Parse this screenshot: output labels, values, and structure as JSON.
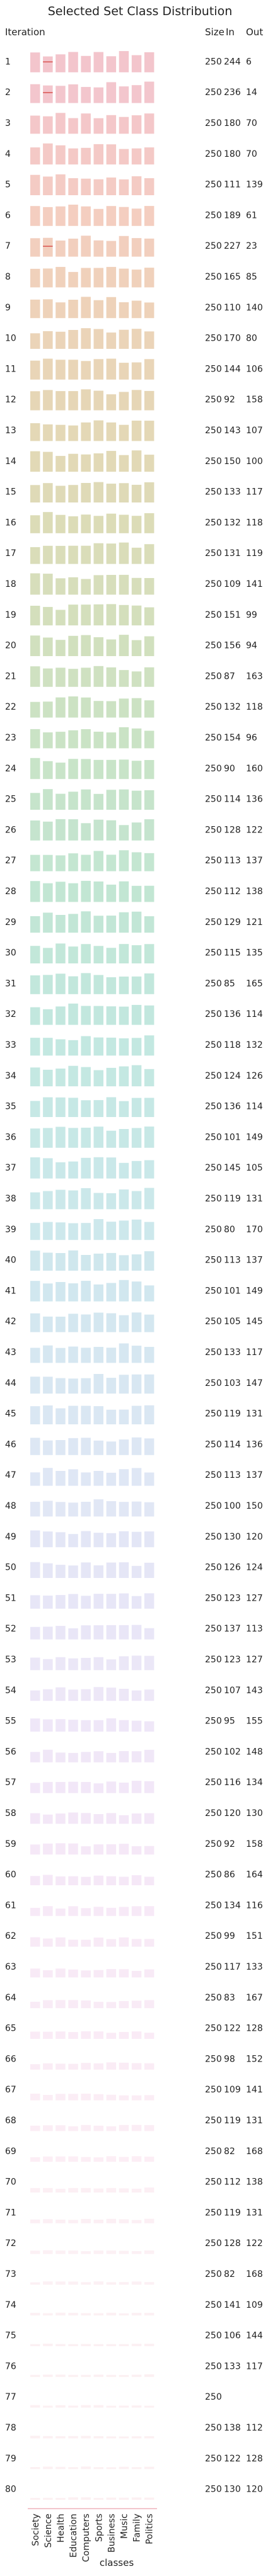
{
  "chart_data": {
    "type": "bar",
    "title": "Selected Set Class Distribution",
    "row_header": "Iteration",
    "column_headers": {
      "size": "Size",
      "in": "In",
      "out": "Out"
    },
    "xlabel": "classes",
    "categories": [
      "Society",
      "Science",
      "Health",
      "Education",
      "Computers",
      "Sports",
      "Business",
      "Music",
      "Family",
      "Politics"
    ],
    "grid": false,
    "legend": "none",
    "note": "",
    "rows": [
      {
        "iteration": "1",
        "size": "250",
        "in": "244",
        "out": "6",
        "color": "#f3c5cc"
      },
      {
        "iteration": "2",
        "size": "250",
        "in": "236",
        "out": "14",
        "color": "#f3c5cc"
      },
      {
        "iteration": "3",
        "size": "250",
        "in": "180",
        "out": "70",
        "color": "#f4c6c8"
      },
      {
        "iteration": "4",
        "size": "250",
        "in": "180",
        "out": "70",
        "color": "#f4c7c4"
      },
      {
        "iteration": "5",
        "size": "250",
        "in": "111",
        "out": "139",
        "color": "#f4c9c1"
      },
      {
        "iteration": "6",
        "size": "250",
        "in": "189",
        "out": "61",
        "color": "#f3cbbd"
      },
      {
        "iteration": "7",
        "size": "250",
        "in": "227",
        "out": "23",
        "color": "#f1ccba"
      },
      {
        "iteration": "8",
        "size": "250",
        "in": "165",
        "out": "85",
        "color": "#efcdb6"
      },
      {
        "iteration": "9",
        "size": "250",
        "in": "110",
        "out": "140",
        "color": "#ecceb3"
      },
      {
        "iteration": "10",
        "size": "250",
        "in": "170",
        "out": "80",
        "color": "#e9cfb1"
      },
      {
        "iteration": "11",
        "size": "250",
        "in": "144",
        "out": "106",
        "color": "#e6d0ae"
      },
      {
        "iteration": "12",
        "size": "250",
        "in": "92",
        "out": "158",
        "color": "#e3d1ac"
      },
      {
        "iteration": "13",
        "size": "250",
        "in": "143",
        "out": "107",
        "color": "#e0d2ab"
      },
      {
        "iteration": "14",
        "size": "250",
        "in": "150",
        "out": "100",
        "color": "#ddd3aa"
      },
      {
        "iteration": "15",
        "size": "250",
        "in": "133",
        "out": "117",
        "color": "#d9d4aa"
      },
      {
        "iteration": "16",
        "size": "250",
        "in": "132",
        "out": "118",
        "color": "#d6d5aa"
      },
      {
        "iteration": "17",
        "size": "250",
        "in": "131",
        "out": "119",
        "color": "#d2d6ab"
      },
      {
        "iteration": "18",
        "size": "250",
        "in": "109",
        "out": "141",
        "color": "#ced7ac"
      },
      {
        "iteration": "19",
        "size": "250",
        "in": "151",
        "out": "99",
        "color": "#cad8ad"
      },
      {
        "iteration": "20",
        "size": "250",
        "in": "156",
        "out": "94",
        "color": "#c6d8ae"
      },
      {
        "iteration": "21",
        "size": "250",
        "in": "87",
        "out": "163",
        "color": "#c2d9b0"
      },
      {
        "iteration": "22",
        "size": "250",
        "in": "132",
        "out": "118",
        "color": "#bedab2"
      },
      {
        "iteration": "23",
        "size": "250",
        "in": "154",
        "out": "96",
        "color": "#badab4"
      },
      {
        "iteration": "24",
        "size": "250",
        "in": "90",
        "out": "160",
        "color": "#b6dbb6"
      },
      {
        "iteration": "25",
        "size": "250",
        "in": "114",
        "out": "136",
        "color": "#b3dbb9"
      },
      {
        "iteration": "26",
        "size": "250",
        "in": "128",
        "out": "122",
        "color": "#b0dbbc"
      },
      {
        "iteration": "27",
        "size": "250",
        "in": "113",
        "out": "137",
        "color": "#addcbf"
      },
      {
        "iteration": "28",
        "size": "250",
        "in": "112",
        "out": "138",
        "color": "#aadcc2"
      },
      {
        "iteration": "29",
        "size": "250",
        "in": "129",
        "out": "121",
        "color": "#a8dcc5"
      },
      {
        "iteration": "30",
        "size": "250",
        "in": "115",
        "out": "135",
        "color": "#a7dcc8"
      },
      {
        "iteration": "31",
        "size": "250",
        "in": "85",
        "out": "165",
        "color": "#a6dccb"
      },
      {
        "iteration": "32",
        "size": "250",
        "in": "136",
        "out": "114",
        "color": "#a5dcce"
      },
      {
        "iteration": "33",
        "size": "250",
        "in": "118",
        "out": "132",
        "color": "#a5dcd1"
      },
      {
        "iteration": "34",
        "size": "250",
        "in": "124",
        "out": "126",
        "color": "#a5dbd3"
      },
      {
        "iteration": "35",
        "size": "250",
        "in": "136",
        "out": "114",
        "color": "#a6dbd6"
      },
      {
        "iteration": "36",
        "size": "250",
        "in": "101",
        "out": "149",
        "color": "#a7dad8"
      },
      {
        "iteration": "37",
        "size": "250",
        "in": "145",
        "out": "105",
        "color": "#a8dadb"
      },
      {
        "iteration": "38",
        "size": "250",
        "in": "119",
        "out": "131",
        "color": "#aad9dd"
      },
      {
        "iteration": "39",
        "size": "250",
        "in": "80",
        "out": "170",
        "color": "#acd8df"
      },
      {
        "iteration": "40",
        "size": "250",
        "in": "113",
        "out": "137",
        "color": "#aed7e1"
      },
      {
        "iteration": "41",
        "size": "250",
        "in": "101",
        "out": "149",
        "color": "#b0d6e3"
      },
      {
        "iteration": "42",
        "size": "250",
        "in": "105",
        "out": "145",
        "color": "#b3d5e5"
      },
      {
        "iteration": "43",
        "size": "250",
        "in": "133",
        "out": "117",
        "color": "#b5d4e6"
      },
      {
        "iteration": "44",
        "size": "250",
        "in": "103",
        "out": "147",
        "color": "#b8d3e8"
      },
      {
        "iteration": "45",
        "size": "250",
        "in": "119",
        "out": "131",
        "color": "#bbd2e9"
      },
      {
        "iteration": "46",
        "size": "250",
        "in": "114",
        "out": "136",
        "color": "#bed1ea"
      },
      {
        "iteration": "47",
        "size": "250",
        "in": "113",
        "out": "137",
        "color": "#c1d0eb"
      },
      {
        "iteration": "48",
        "size": "250",
        "in": "100",
        "out": "150",
        "color": "#c4cfec"
      },
      {
        "iteration": "49",
        "size": "250",
        "in": "130",
        "out": "120",
        "color": "#c7cded"
      },
      {
        "iteration": "50",
        "size": "250",
        "in": "126",
        "out": "124",
        "color": "#cacced"
      },
      {
        "iteration": "51",
        "size": "250",
        "in": "123",
        "out": "127",
        "color": "#cdcbee"
      },
      {
        "iteration": "52",
        "size": "250",
        "in": "137",
        "out": "113",
        "color": "#d0caee"
      },
      {
        "iteration": "53",
        "size": "250",
        "in": "123",
        "out": "127",
        "color": "#d3c9ee"
      },
      {
        "iteration": "54",
        "size": "250",
        "in": "107",
        "out": "143",
        "color": "#d6c8ee"
      },
      {
        "iteration": "55",
        "size": "250",
        "in": "95",
        "out": "155",
        "color": "#d9c7ee"
      },
      {
        "iteration": "56",
        "size": "250",
        "in": "102",
        "out": "148",
        "color": "#dcc6ed"
      },
      {
        "iteration": "57",
        "size": "250",
        "in": "116",
        "out": "134",
        "color": "#dfc5ed"
      },
      {
        "iteration": "58",
        "size": "250",
        "in": "120",
        "out": "130",
        "color": "#e1c4ec"
      },
      {
        "iteration": "59",
        "size": "250",
        "in": "92",
        "out": "158",
        "color": "#e4c4eb"
      },
      {
        "iteration": "60",
        "size": "250",
        "in": "86",
        "out": "164",
        "color": "#e6c3ea"
      },
      {
        "iteration": "61",
        "size": "250",
        "in": "134",
        "out": "116",
        "color": "#e8c3e9"
      },
      {
        "iteration": "62",
        "size": "250",
        "in": "99",
        "out": "151",
        "color": "#eac3e7"
      },
      {
        "iteration": "63",
        "size": "250",
        "in": "117",
        "out": "133",
        "color": "#ecc3e6"
      },
      {
        "iteration": "64",
        "size": "250",
        "in": "83",
        "out": "167",
        "color": "#eec3e4"
      },
      {
        "iteration": "65",
        "size": "250",
        "in": "122",
        "out": "128",
        "color": "#efc3e2"
      },
      {
        "iteration": "66",
        "size": "250",
        "in": "98",
        "out": "152",
        "color": "#f0c3e0"
      },
      {
        "iteration": "67",
        "size": "250",
        "in": "109",
        "out": "141",
        "color": "#f1c3de"
      },
      {
        "iteration": "68",
        "size": "250",
        "in": "119",
        "out": "131",
        "color": "#f2c3dc"
      },
      {
        "iteration": "69",
        "size": "250",
        "in": "82",
        "out": "168",
        "color": "#f3c3da"
      },
      {
        "iteration": "70",
        "size": "250",
        "in": "112",
        "out": "138",
        "color": "#f3c4d8"
      },
      {
        "iteration": "71",
        "size": "250",
        "in": "119",
        "out": "131",
        "color": "#f4c4d6"
      },
      {
        "iteration": "72",
        "size": "250",
        "in": "128",
        "out": "122",
        "color": "#f4c4d4"
      },
      {
        "iteration": "73",
        "size": "250",
        "in": "82",
        "out": "168",
        "color": "#f4c5d2"
      },
      {
        "iteration": "74",
        "size": "250",
        "in": "141",
        "out": "109",
        "color": "#f4c5d0"
      },
      {
        "iteration": "75",
        "size": "250",
        "in": "106",
        "out": "144",
        "color": "#f4c5ce"
      },
      {
        "iteration": "76",
        "size": "250",
        "in": "133",
        "out": "117",
        "color": "#f3c5cd"
      },
      {
        "iteration": "77",
        "size": "250",
        "in": "",
        "out": "",
        "color": "#f3c5cc"
      },
      {
        "iteration": "78",
        "size": "250",
        "in": "138",
        "out": "112",
        "color": "#f3c5cc"
      },
      {
        "iteration": "79",
        "size": "250",
        "in": "122",
        "out": "128",
        "color": "#f3c5cc"
      },
      {
        "iteration": "80",
        "size": "250",
        "in": "130",
        "out": "120",
        "color": "#f3c5cc"
      }
    ],
    "accent_marks": [
      {
        "iteration": "1",
        "category": "Science",
        "color": "#d9534f"
      },
      {
        "iteration": "2",
        "category": "Science",
        "color": "#d9534f"
      },
      {
        "iteration": "7",
        "category": "Science",
        "color": "#d9534f"
      }
    ]
  }
}
